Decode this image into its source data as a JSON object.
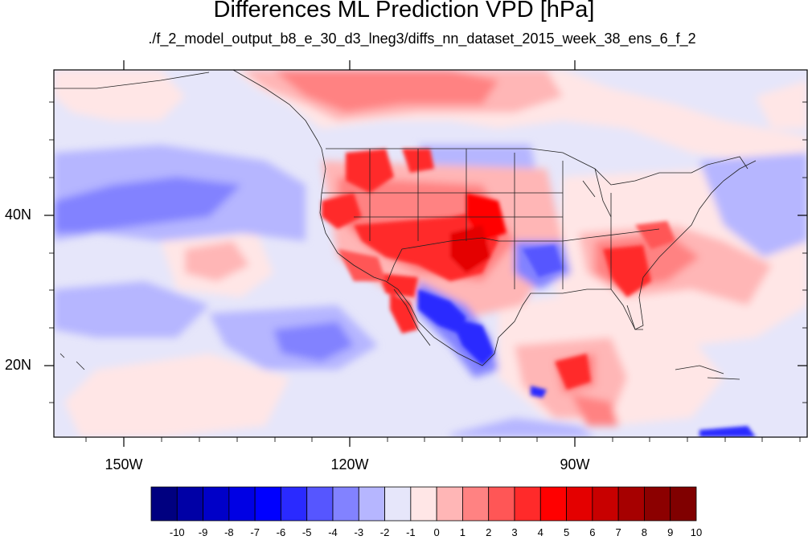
{
  "title": "Differences ML Prediction VPD [hPa]",
  "subtitle": "./f_2_model_output_b8_e_30_d3_lneg3/diffs_nn_dataset_2015_week_38_ens_6_f_2",
  "map": {
    "lon_range": [
      -160,
      -62
    ],
    "lat_range": [
      10,
      59
    ],
    "lon_labels": [
      {
        "lon": -150,
        "text": "150W"
      },
      {
        "lon": -120,
        "text": "120W"
      },
      {
        "lon": -90,
        "text": "90W"
      }
    ],
    "lat_labels": [
      {
        "lat": 40,
        "text": "40N"
      },
      {
        "lat": 20,
        "text": "20N"
      }
    ]
  },
  "colorbar": {
    "levels": [
      "-10",
      "-9",
      "-8",
      "-7",
      "-6",
      "-5",
      "-4",
      "-3",
      "-2",
      "-1",
      "0",
      "1",
      "2",
      "3",
      "4",
      "5",
      "6",
      "7",
      "8",
      "9",
      "10"
    ],
    "colors": [
      "#000080",
      "#0000a6",
      "#0000c8",
      "#0000e4",
      "#0000ff",
      "#2a2aff",
      "#5656ff",
      "#8282ff",
      "#b6b6ff",
      "#e6e6fa",
      "#ffe6e6",
      "#ffb6b6",
      "#ff8282",
      "#ff5656",
      "#ff2a2a",
      "#ff0000",
      "#e40000",
      "#c80000",
      "#a60000",
      "#8c0000",
      "#800000"
    ]
  }
}
